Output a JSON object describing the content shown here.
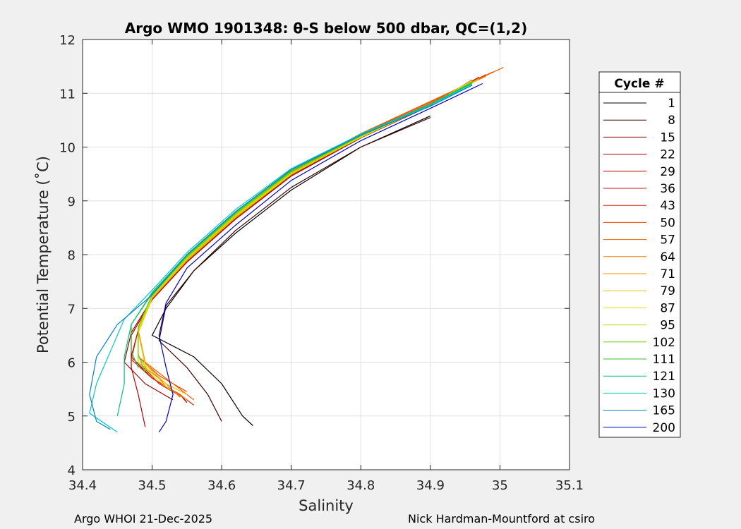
{
  "chart_data": {
    "type": "line",
    "title": "Argo WMO 1901348: θ-S below 500 dbar,  QC=(1,2)",
    "xlabel": "Salinity",
    "ylabel": "Potential Temperature (˚C)",
    "xlim": [
      34.4,
      35.1
    ],
    "ylim": [
      4,
      12
    ],
    "x_ticks": [
      "34.4",
      "34.5",
      "34.6",
      "34.7",
      "34.8",
      "34.9",
      "35",
      "35.1"
    ],
    "y_ticks": [
      "4",
      "5",
      "6",
      "7",
      "8",
      "9",
      "10",
      "11",
      "12"
    ],
    "grid": true,
    "legend_position": "right",
    "legend_title": "Cycle #",
    "series": [
      {
        "name": "1",
        "color": "#000000",
        "points": [
          [
            34.9,
            10.58
          ],
          [
            34.8,
            10.0
          ],
          [
            34.7,
            9.2
          ],
          [
            34.62,
            8.4
          ],
          [
            34.56,
            7.7
          ],
          [
            34.52,
            7.0
          ],
          [
            34.5,
            6.5
          ],
          [
            34.56,
            6.1
          ],
          [
            34.6,
            5.6
          ],
          [
            34.63,
            5.0
          ],
          [
            34.645,
            4.82
          ]
        ]
      },
      {
        "name": "8",
        "color": "#3a0000",
        "points": [
          [
            34.9,
            10.55
          ],
          [
            34.8,
            10.0
          ],
          [
            34.7,
            9.25
          ],
          [
            34.62,
            8.45
          ],
          [
            34.56,
            7.7
          ],
          [
            34.52,
            7.05
          ],
          [
            34.51,
            6.4
          ],
          [
            34.55,
            5.9
          ],
          [
            34.58,
            5.4
          ],
          [
            34.6,
            4.9
          ]
        ]
      },
      {
        "name": "15",
        "color": "#7a0000",
        "points": [
          [
            34.97,
            11.3
          ],
          [
            34.9,
            10.8
          ],
          [
            34.8,
            10.2
          ],
          [
            34.7,
            9.5
          ],
          [
            34.62,
            8.7
          ],
          [
            34.55,
            7.9
          ],
          [
            34.5,
            7.2
          ],
          [
            34.48,
            6.6
          ],
          [
            34.47,
            6.1
          ],
          [
            34.5,
            5.7
          ],
          [
            34.54,
            5.4
          ],
          [
            34.55,
            5.25
          ]
        ]
      },
      {
        "name": "22",
        "color": "#9a0000",
        "points": [
          [
            34.97,
            11.28
          ],
          [
            34.9,
            10.78
          ],
          [
            34.8,
            10.18
          ],
          [
            34.7,
            9.48
          ],
          [
            34.62,
            8.68
          ],
          [
            34.55,
            7.88
          ],
          [
            34.5,
            7.18
          ],
          [
            34.47,
            6.55
          ],
          [
            34.46,
            6.0
          ],
          [
            34.49,
            5.6
          ],
          [
            34.53,
            5.3
          ]
        ]
      },
      {
        "name": "29",
        "color": "#b50000",
        "points": [
          [
            34.96,
            11.25
          ],
          [
            34.9,
            10.77
          ],
          [
            34.8,
            10.17
          ],
          [
            34.7,
            9.46
          ],
          [
            34.62,
            8.66
          ],
          [
            34.55,
            7.86
          ],
          [
            34.5,
            7.16
          ],
          [
            34.47,
            6.5
          ],
          [
            34.47,
            5.9
          ],
          [
            34.48,
            5.4
          ],
          [
            34.49,
            4.8
          ]
        ]
      },
      {
        "name": "36",
        "color": "#cc1111",
        "points": [
          [
            34.97,
            11.3
          ],
          [
            34.9,
            10.8
          ],
          [
            34.8,
            10.2
          ],
          [
            34.7,
            9.5
          ],
          [
            34.62,
            8.7
          ],
          [
            34.55,
            7.9
          ],
          [
            34.5,
            7.2
          ],
          [
            34.48,
            6.6
          ],
          [
            34.48,
            6.0
          ],
          [
            34.51,
            5.6
          ],
          [
            34.55,
            5.3
          ]
        ]
      },
      {
        "name": "43",
        "color": "#dd2200",
        "points": [
          [
            34.98,
            11.35
          ],
          [
            34.9,
            10.82
          ],
          [
            34.8,
            10.22
          ],
          [
            34.7,
            9.52
          ],
          [
            34.62,
            8.72
          ],
          [
            34.55,
            7.92
          ],
          [
            34.5,
            7.22
          ],
          [
            34.48,
            6.6
          ],
          [
            34.47,
            6.05
          ],
          [
            34.5,
            5.7
          ],
          [
            34.54,
            5.4
          ],
          [
            34.56,
            5.2
          ]
        ]
      },
      {
        "name": "50",
        "color": "#ee4400",
        "points": [
          [
            34.99,
            11.4
          ],
          [
            34.9,
            10.84
          ],
          [
            34.8,
            10.24
          ],
          [
            34.7,
            9.54
          ],
          [
            34.62,
            8.74
          ],
          [
            34.55,
            7.94
          ],
          [
            34.5,
            7.24
          ],
          [
            34.48,
            6.62
          ],
          [
            34.48,
            6.1
          ],
          [
            34.51,
            5.75
          ],
          [
            34.55,
            5.45
          ]
        ]
      },
      {
        "name": "57",
        "color": "#f06000",
        "points": [
          [
            35.005,
            11.48
          ],
          [
            34.95,
            11.15
          ],
          [
            34.9,
            10.85
          ],
          [
            34.8,
            10.25
          ],
          [
            34.7,
            9.55
          ],
          [
            34.62,
            8.75
          ],
          [
            34.55,
            7.95
          ],
          [
            34.5,
            7.25
          ],
          [
            34.48,
            6.65
          ],
          [
            34.48,
            6.1
          ],
          [
            34.52,
            5.7
          ],
          [
            34.56,
            5.3
          ]
        ]
      },
      {
        "name": "64",
        "color": "#f07800",
        "points": [
          [
            34.98,
            11.32
          ],
          [
            34.9,
            10.82
          ],
          [
            34.8,
            10.22
          ],
          [
            34.7,
            9.52
          ],
          [
            34.62,
            8.72
          ],
          [
            34.55,
            7.92
          ],
          [
            34.5,
            7.22
          ],
          [
            34.48,
            6.6
          ],
          [
            34.48,
            6.0
          ],
          [
            34.52,
            5.6
          ],
          [
            34.54,
            5.35
          ]
        ]
      },
      {
        "name": "71",
        "color": "#f09000",
        "points": [
          [
            34.97,
            11.28
          ],
          [
            34.9,
            10.8
          ],
          [
            34.8,
            10.2
          ],
          [
            34.7,
            9.5
          ],
          [
            34.62,
            8.7
          ],
          [
            34.55,
            7.9
          ],
          [
            34.5,
            7.2
          ],
          [
            34.48,
            6.6
          ],
          [
            34.49,
            6.0
          ],
          [
            34.52,
            5.55
          ],
          [
            34.55,
            5.3
          ]
        ]
      },
      {
        "name": "79",
        "color": "#f0c000",
        "points": [
          [
            34.97,
            11.26
          ],
          [
            34.9,
            10.79
          ],
          [
            34.8,
            10.19
          ],
          [
            34.7,
            9.49
          ],
          [
            34.62,
            8.69
          ],
          [
            34.55,
            7.89
          ],
          [
            34.5,
            7.19
          ],
          [
            34.48,
            6.55
          ],
          [
            34.49,
            5.95
          ],
          [
            34.52,
            5.6
          ],
          [
            34.55,
            5.4
          ]
        ]
      },
      {
        "name": "87",
        "color": "#e0e000",
        "points": [
          [
            34.96,
            11.24
          ],
          [
            34.9,
            10.78
          ],
          [
            34.8,
            10.18
          ],
          [
            34.7,
            9.5
          ],
          [
            34.62,
            8.72
          ],
          [
            34.55,
            7.92
          ],
          [
            34.5,
            7.22
          ],
          [
            34.48,
            6.58
          ],
          [
            34.48,
            6.0
          ],
          [
            34.51,
            5.65
          ],
          [
            34.53,
            5.45
          ]
        ]
      },
      {
        "name": "95",
        "color": "#b0e000",
        "points": [
          [
            34.96,
            11.22
          ],
          [
            34.9,
            10.78
          ],
          [
            34.8,
            10.2
          ],
          [
            34.7,
            9.52
          ],
          [
            34.62,
            8.74
          ],
          [
            34.55,
            7.94
          ],
          [
            34.5,
            7.24
          ],
          [
            34.48,
            6.62
          ],
          [
            34.48,
            6.1
          ],
          [
            34.5,
            5.75
          ]
        ]
      },
      {
        "name": "102",
        "color": "#70d000",
        "points": [
          [
            34.96,
            11.2
          ],
          [
            34.9,
            10.78
          ],
          [
            34.8,
            10.21
          ],
          [
            34.7,
            9.54
          ],
          [
            34.62,
            8.76
          ],
          [
            34.55,
            7.96
          ],
          [
            34.5,
            7.26
          ],
          [
            34.48,
            6.65
          ],
          [
            34.48,
            6.15
          ],
          [
            34.49,
            5.8
          ]
        ]
      },
      {
        "name": "111",
        "color": "#30c030",
        "points": [
          [
            34.96,
            11.2
          ],
          [
            34.9,
            10.8
          ],
          [
            34.8,
            10.23
          ],
          [
            34.7,
            9.56
          ],
          [
            34.62,
            8.78
          ],
          [
            34.55,
            7.98
          ],
          [
            34.5,
            7.28
          ],
          [
            34.47,
            6.7
          ],
          [
            34.47,
            6.2
          ],
          [
            34.48,
            5.9
          ]
        ]
      },
      {
        "name": "121",
        "color": "#00c080",
        "points": [
          [
            34.96,
            11.18
          ],
          [
            34.9,
            10.8
          ],
          [
            34.8,
            10.24
          ],
          [
            34.7,
            9.58
          ],
          [
            34.62,
            8.8
          ],
          [
            34.55,
            8.0
          ],
          [
            34.5,
            7.3
          ],
          [
            34.47,
            6.7
          ],
          [
            34.46,
            6.1
          ],
          [
            34.46,
            5.6
          ],
          [
            34.45,
            5.0
          ]
        ]
      },
      {
        "name": "130",
        "color": "#00c8c8",
        "points": [
          [
            34.96,
            11.16
          ],
          [
            34.9,
            10.78
          ],
          [
            34.8,
            10.24
          ],
          [
            34.7,
            9.6
          ],
          [
            34.62,
            8.84
          ],
          [
            34.55,
            8.04
          ],
          [
            34.5,
            7.34
          ],
          [
            34.46,
            6.8
          ],
          [
            34.44,
            6.2
          ],
          [
            34.42,
            5.6
          ],
          [
            34.41,
            5.05
          ],
          [
            34.45,
            4.7
          ]
        ]
      },
      {
        "name": "165",
        "color": "#0080d0",
        "points": [
          [
            34.96,
            11.15
          ],
          [
            34.9,
            10.76
          ],
          [
            34.8,
            10.22
          ],
          [
            34.7,
            9.58
          ],
          [
            34.62,
            8.8
          ],
          [
            34.55,
            8.0
          ],
          [
            34.5,
            7.25
          ],
          [
            34.45,
            6.7
          ],
          [
            34.42,
            6.1
          ],
          [
            34.41,
            5.4
          ],
          [
            34.42,
            4.9
          ],
          [
            34.44,
            4.75
          ]
        ]
      },
      {
        "name": "200",
        "color": "#0000c0",
        "points": [
          [
            34.975,
            11.18
          ],
          [
            34.9,
            10.72
          ],
          [
            34.8,
            10.12
          ],
          [
            34.7,
            9.38
          ],
          [
            34.62,
            8.55
          ],
          [
            34.55,
            7.75
          ],
          [
            34.52,
            7.1
          ],
          [
            34.51,
            6.5
          ],
          [
            34.52,
            5.9
          ],
          [
            34.53,
            5.4
          ],
          [
            34.52,
            4.9
          ],
          [
            34.51,
            4.7
          ]
        ]
      }
    ]
  },
  "footer": {
    "left": "Argo WHOI 21-Dec-2025",
    "right": "Nick Hardman-Mountford at csiro"
  }
}
